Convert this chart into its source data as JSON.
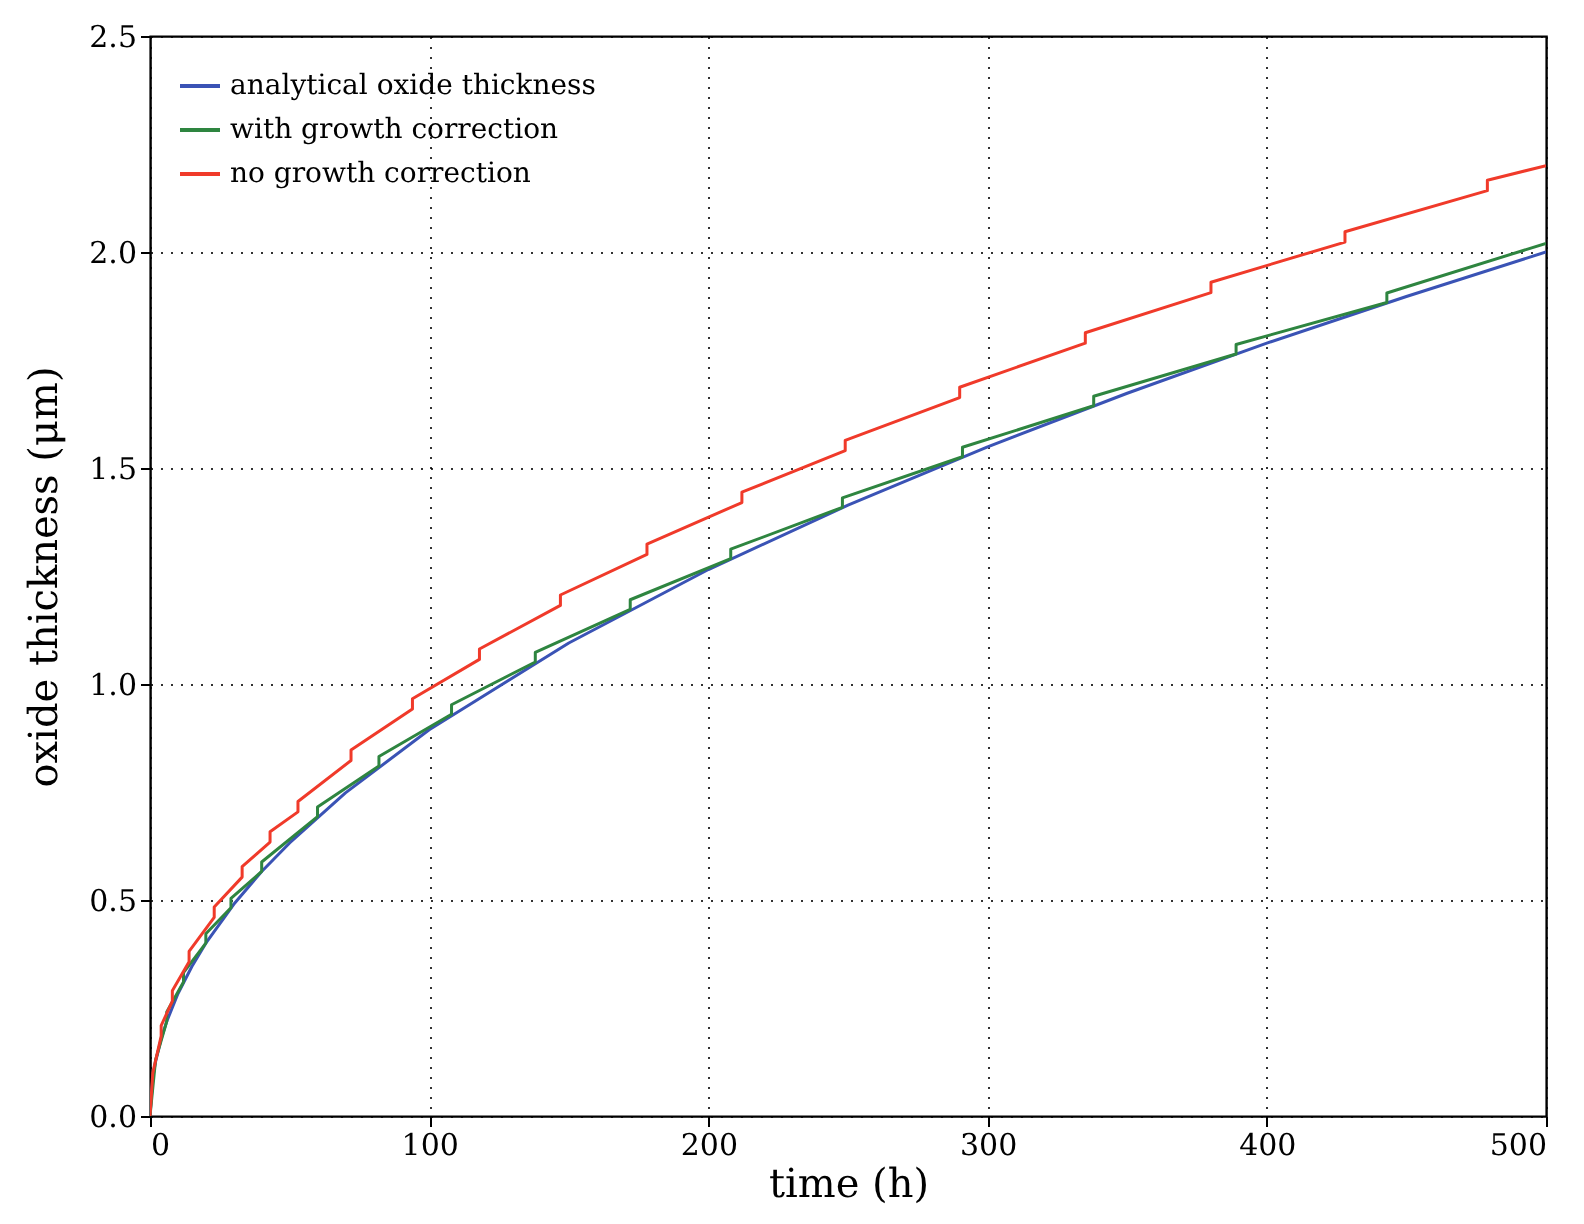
{
  "chart_data": {
    "type": "line",
    "xlabel": "time (h)",
    "ylabel": "oxide thickness (μm)",
    "xlim": [
      0,
      500
    ],
    "xticks": [
      0,
      100,
      200,
      300,
      400,
      500
    ],
    "ylim": [
      0,
      2.5
    ],
    "yticks": [
      {
        "value": 0,
        "label": "0.0"
      },
      {
        "value": 0.5,
        "label": "0.5"
      },
      {
        "value": 1,
        "label": "1.0"
      },
      {
        "value": 1.5,
        "label": "1.5"
      },
      {
        "value": 2,
        "label": "2.0"
      },
      {
        "value": 2.5,
        "label": "2.5"
      }
    ],
    "grid": true,
    "legend": "top left",
    "line_style": "solid",
    "series": [
      {
        "name": "analytical oxide thickness",
        "color": "#3a53b5",
        "x": [
          0,
          1,
          2,
          4,
          6,
          10,
          15,
          20,
          30,
          40,
          50,
          70,
          100,
          150,
          200,
          250,
          300,
          350,
          400,
          450,
          500
        ],
        "values": [
          0,
          0.089,
          0.126,
          0.179,
          0.219,
          0.283,
          0.346,
          0.4,
          0.49,
          0.566,
          0.632,
          0.748,
          0.894,
          1.095,
          1.265,
          1.414,
          1.549,
          1.673,
          1.789,
          1.897,
          2.0
        ]
      },
      {
        "name": "with growth correction",
        "color": "#2e8540",
        "x": [
          0,
          2,
          6,
          6,
          12,
          12,
          20,
          20,
          29,
          29,
          40,
          40,
          60,
          60,
          82,
          82,
          108,
          108,
          138,
          138,
          172,
          172,
          208,
          208,
          248,
          248,
          291,
          291,
          338,
          338,
          389,
          389,
          443,
          443,
          500
        ],
        "values": [
          0,
          0.13,
          0.219,
          0.241,
          0.31,
          0.332,
          0.4,
          0.422,
          0.482,
          0.504,
          0.566,
          0.588,
          0.693,
          0.715,
          0.81,
          0.832,
          0.93,
          0.952,
          1.051,
          1.073,
          1.173,
          1.195,
          1.29,
          1.312,
          1.409,
          1.431,
          1.526,
          1.548,
          1.644,
          1.666,
          1.764,
          1.786,
          1.883,
          1.905,
          2.02
        ]
      },
      {
        "name": "no growth correction",
        "color": "#f03a2a",
        "x": [
          0,
          1,
          4,
          4,
          8,
          8,
          14,
          14,
          23,
          23,
          33,
          33,
          43,
          43,
          53,
          53,
          72,
          72,
          94,
          94,
          118,
          118,
          147,
          147,
          178,
          178,
          212,
          212,
          249,
          249,
          290,
          290,
          335,
          335,
          380,
          380,
          428,
          428,
          479,
          479,
          500
        ],
        "values": [
          0,
          0.1,
          0.185,
          0.209,
          0.266,
          0.29,
          0.357,
          0.381,
          0.46,
          0.484,
          0.553,
          0.577,
          0.634,
          0.658,
          0.704,
          0.728,
          0.823,
          0.847,
          0.942,
          0.966,
          1.057,
          1.081,
          1.182,
          1.206,
          1.3,
          1.324,
          1.42,
          1.444,
          1.54,
          1.564,
          1.663,
          1.687,
          1.789,
          1.813,
          1.906,
          1.93,
          2.023,
          2.047,
          2.142,
          2.166,
          2.2
        ]
      }
    ]
  }
}
